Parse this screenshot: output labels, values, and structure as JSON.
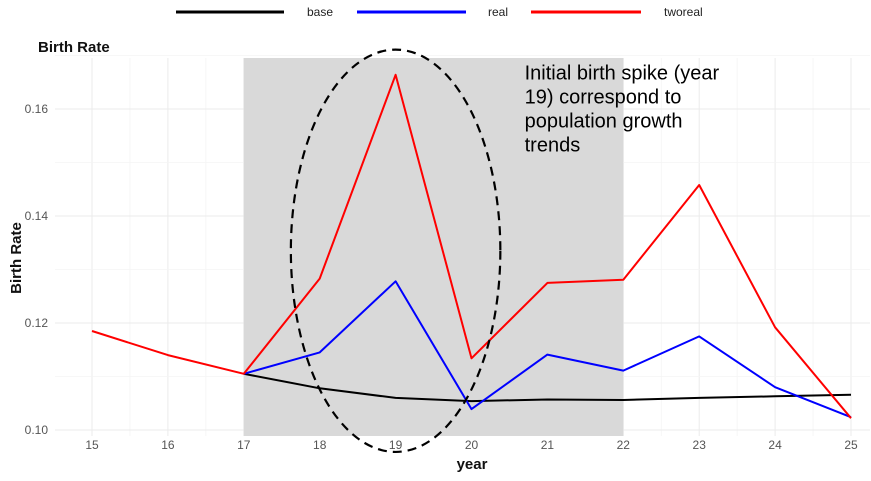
{
  "chart_data": {
    "type": "line",
    "title": "Birth Rate",
    "xlabel": "year",
    "ylabel": "Birth Rate",
    "x": [
      15,
      16,
      17,
      18,
      19,
      20,
      21,
      22,
      23,
      24,
      25
    ],
    "xlim": [
      15,
      25
    ],
    "ylim": [
      0.1,
      0.17
    ],
    "y_ticks": [
      0.1,
      0.12,
      0.14,
      0.16
    ],
    "y_tick_labels": [
      "0.10",
      "0.12",
      "0.14",
      "0.16"
    ],
    "x_tick_labels": [
      "15",
      "16",
      "17",
      "18",
      "19",
      "20",
      "21",
      "22",
      "23",
      "24",
      "25"
    ],
    "grid": true,
    "legend_position": "top",
    "series": [
      {
        "name": "base",
        "color": "#000000",
        "x": [
          17,
          18,
          19,
          20,
          21,
          22,
          23,
          24,
          25
        ],
        "values": [
          0.1105,
          0.1078,
          0.106,
          0.1054,
          0.1057,
          0.1056,
          0.106,
          0.1063,
          0.1066
        ]
      },
      {
        "name": "real",
        "color": "#0000ff",
        "x": [
          17,
          18,
          19,
          20,
          21,
          22,
          23,
          24,
          25
        ],
        "values": [
          0.1105,
          0.1145,
          0.1278,
          0.1039,
          0.1141,
          0.1111,
          0.1175,
          0.108,
          0.1024
        ]
      },
      {
        "name": "tworeal",
        "color": "#ff0000",
        "x": [
          15,
          16,
          17,
          18,
          19,
          20,
          21,
          22,
          23,
          24,
          25
        ],
        "values": [
          0.1185,
          0.114,
          0.1105,
          0.1283,
          0.1664,
          0.1134,
          0.1275,
          0.1281,
          0.1458,
          0.1192,
          0.1022
        ]
      }
    ],
    "shaded_region": {
      "x_start": 17,
      "x_end": 22,
      "color": "#d9d9d9"
    },
    "highlight_ellipse": {
      "x_center": 19,
      "y_center": 0.1335,
      "x_radius": 1.38,
      "y_radius": 0.0376
    },
    "annotation": {
      "lines": [
        "Initial birth spike (year",
        "19) correspond to",
        "population growth",
        "trends"
      ],
      "x": 20.7,
      "y": 0.1655
    }
  }
}
